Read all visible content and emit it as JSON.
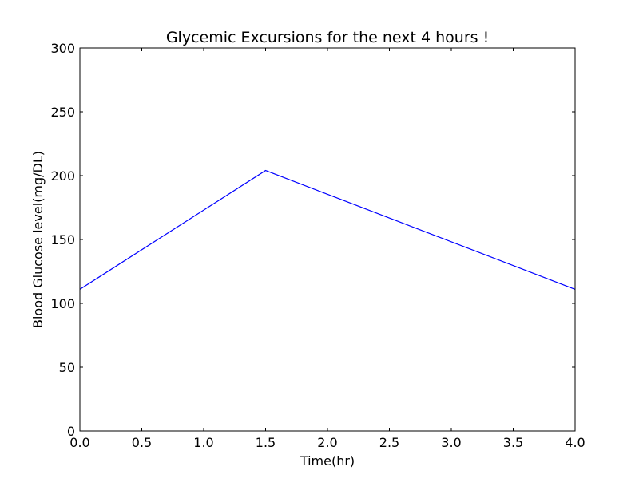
{
  "chart_data": {
    "type": "line",
    "title": "Glycemic Excursions for the next 4 hours !",
    "xlabel": "Time(hr)",
    "ylabel": "Blood Glucose level(mg/DL)",
    "xlim": [
      0,
      4
    ],
    "ylim": [
      0,
      300
    ],
    "xticks": [
      0,
      0.5,
      1,
      1.5,
      2,
      2.5,
      3,
      3.5,
      4
    ],
    "xtick_labels": [
      "0.0",
      "0.5",
      "1.0",
      "1.5",
      "2.0",
      "2.5",
      "3.0",
      "3.5",
      "4.0"
    ],
    "yticks": [
      0,
      50,
      100,
      150,
      200,
      250,
      300
    ],
    "ytick_labels": [
      "0",
      "50",
      "100",
      "150",
      "200",
      "250",
      "300"
    ],
    "grid": false,
    "series": [
      {
        "color": "#0000ff",
        "x": [
          0,
          1.5,
          4
        ],
        "y": [
          111,
          204,
          111
        ]
      }
    ]
  }
}
